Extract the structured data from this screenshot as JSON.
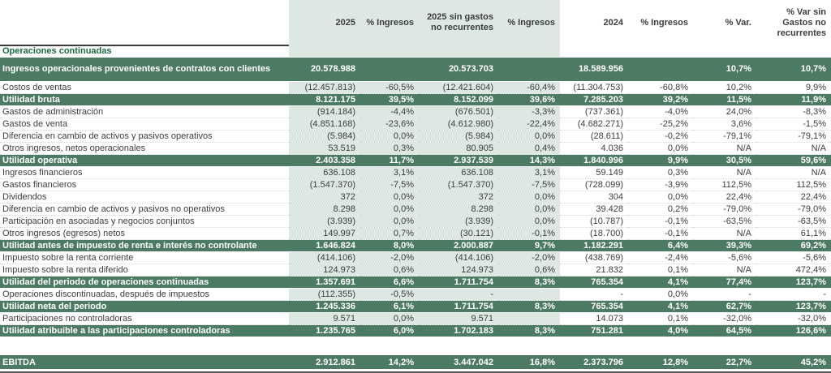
{
  "table": {
    "columns": [
      {
        "label": ""
      },
      {
        "label": "2025"
      },
      {
        "label": "% Ingresos"
      },
      {
        "label": "2025 sin gastos no recurrentes"
      },
      {
        "label": "% Ingresos"
      },
      {
        "label": "2024"
      },
      {
        "label": "% Ingresos"
      },
      {
        "label": "% Var."
      },
      {
        "label": "% Var sin Gastos no recurrentes"
      }
    ],
    "column_keys": [
      "y2025",
      "pct-ingresos-2025",
      "y2025-sin-gastos",
      "pct-ingresos-2025-sin",
      "y2024",
      "pct-ingresos-2024",
      "pct-var",
      "pct-var-sin-gastos"
    ],
    "colors": {
      "highlight_row": "#4d7a62",
      "column_band": "#dde8e2",
      "section_label": "#1a6a42"
    },
    "rows": [
      {
        "type": "section",
        "label": "Operaciones continuadas",
        "cells": [
          "",
          "",
          "",
          "",
          "",
          "",
          "",
          ""
        ]
      },
      {
        "type": "main",
        "label": "Ingresos operacionales provenientes de contratos con clientes",
        "cells": [
          "20.578.988",
          "",
          "20.573.703",
          "",
          "18.589.956",
          "",
          "10,7%",
          "10,7%"
        ]
      },
      {
        "type": "item",
        "label": "Costos de ventas",
        "cells": [
          "(12.457.813)",
          "-60,5%",
          "(12.421.604)",
          "-60,4%",
          "(11.304.753)",
          "-60,8%",
          "10,2%",
          "9,9%"
        ]
      },
      {
        "type": "total",
        "label": "Utilidad bruta",
        "cells": [
          "8.121.175",
          "39,5%",
          "8.152.099",
          "39,6%",
          "7.285.203",
          "39,2%",
          "11,5%",
          "11,9%"
        ]
      },
      {
        "type": "item",
        "label": "Gastos de administración",
        "cells": [
          "(914.184)",
          "-4,4%",
          "(676.501)",
          "-3,3%",
          "(737.361)",
          "-4,0%",
          "24,0%",
          "-8,3%"
        ]
      },
      {
        "type": "item",
        "label": "Gastos de venta",
        "cells": [
          "(4.851.168)",
          "-23,6%",
          "(4.612.980)",
          "-22,4%",
          "(4.682.271)",
          "-25,2%",
          "3,6%",
          "-1,5%"
        ]
      },
      {
        "type": "item",
        "label": "Diferencia en cambio de activos y pasivos operativos",
        "cells": [
          "(5.984)",
          "0,0%",
          "(5.984)",
          "0,0%",
          "(28.611)",
          "-0,2%",
          "-79,1%",
          "-79,1%"
        ]
      },
      {
        "type": "item",
        "label": "Otros ingresos, netos operacionales",
        "cells": [
          "53.519",
          "0,3%",
          "80.905",
          "0,4%",
          "4.036",
          "0,0%",
          "N/A",
          "N/A"
        ]
      },
      {
        "type": "total",
        "label": "Utilidad operativa",
        "cells": [
          "2.403.358",
          "11,7%",
          "2.937.539",
          "14,3%",
          "1.840.996",
          "9,9%",
          "30,5%",
          "59,6%"
        ]
      },
      {
        "type": "item",
        "label": "Ingresos financieros",
        "cells": [
          "636.108",
          "3,1%",
          "636.108",
          "3,1%",
          "59.149",
          "0,3%",
          "N/A",
          "N/A"
        ]
      },
      {
        "type": "item",
        "label": "Gastos financieros",
        "cells": [
          "(1.547.370)",
          "-7,5%",
          "(1.547.370)",
          "-7,5%",
          "(728.099)",
          "-3,9%",
          "112,5%",
          "112,5%"
        ]
      },
      {
        "type": "item",
        "label": "Dividendos",
        "cells": [
          "372",
          "0,0%",
          "372",
          "0,0%",
          "304",
          "0,0%",
          "22,4%",
          "22,4%"
        ]
      },
      {
        "type": "item",
        "label": "Diferencia en cambio de activos y pasivos no operativos",
        "cells": [
          "8.298",
          "0,0%",
          "8.298",
          "0,0%",
          "39.428",
          "0,2%",
          "-79,0%",
          "-79,0%"
        ]
      },
      {
        "type": "item",
        "label": "Participación en asociadas y negocios conjuntos",
        "cells": [
          "(3.939)",
          "0,0%",
          "(3.939)",
          "0,0%",
          "(10.787)",
          "-0,1%",
          "-63,5%",
          "-63,5%"
        ]
      },
      {
        "type": "item",
        "label": "Otros ingresos (egresos) netos",
        "cells": [
          "149.997",
          "0,7%",
          "(30.121)",
          "-0,1%",
          "(18.700)",
          "-0,1%",
          "N/A",
          "61,1%"
        ]
      },
      {
        "type": "total",
        "label": "Utilidad antes de impuesto de renta e interés no controlante",
        "cells": [
          "1.646.824",
          "8,0%",
          "2.000.887",
          "9,7%",
          "1.182.291",
          "6,4%",
          "39,3%",
          "69,2%"
        ]
      },
      {
        "type": "item",
        "label": "Impuesto sobre la renta corriente",
        "cells": [
          "(414.106)",
          "-2,0%",
          "(414.106)",
          "-2,0%",
          "(438.769)",
          "-2,4%",
          "-5,6%",
          "-5,6%"
        ]
      },
      {
        "type": "item",
        "label": "Impuesto sobre la renta diferido",
        "cells": [
          "124.973",
          "0,6%",
          "124.973",
          "0,6%",
          "21.832",
          "0,1%",
          "N/A",
          "472,4%"
        ]
      },
      {
        "type": "total",
        "label": "Utilidad del periodo de operaciones continuadas",
        "cells": [
          "1.357.691",
          "6,6%",
          "1.711.754",
          "8,3%",
          "765.354",
          "4,1%",
          "77,4%",
          "123,7%"
        ]
      },
      {
        "type": "item",
        "label": "Operaciones discontinuadas, después de impuestos",
        "cells": [
          "(112.355)",
          "-0,5%",
          "-",
          "",
          "-",
          "0,0%",
          "-",
          "-"
        ]
      },
      {
        "type": "total",
        "label": "Utilidad neta del periodo",
        "cells": [
          "1.245.336",
          "6,1%",
          "1.711.754",
          "8,3%",
          "765.354",
          "4,1%",
          "62,7%",
          "123,7%"
        ]
      },
      {
        "type": "item",
        "label": "Participaciones no controladoras",
        "cells": [
          "9.571",
          "0,0%",
          "9.571",
          "",
          "14.073",
          "0,1%",
          "-32,0%",
          "-32,0%"
        ]
      },
      {
        "type": "total",
        "label": "Utilidad atribuible a las participaciones controladoras",
        "cells": [
          "1.235.765",
          "6,0%",
          "1.702.183",
          "8,3%",
          "751.281",
          "4,0%",
          "64,5%",
          "126,6%"
        ]
      },
      {
        "type": "spacer",
        "label": "",
        "cells": [
          "",
          "",
          "",
          "",
          "",
          "",
          "",
          ""
        ]
      },
      {
        "type": "ebitda",
        "label": "EBITDA",
        "cells": [
          "2.912.861",
          "14,2%",
          "3.447.042",
          "16,8%",
          "2.373.796",
          "12,8%",
          "22,7%",
          "45,2%"
        ]
      }
    ]
  }
}
